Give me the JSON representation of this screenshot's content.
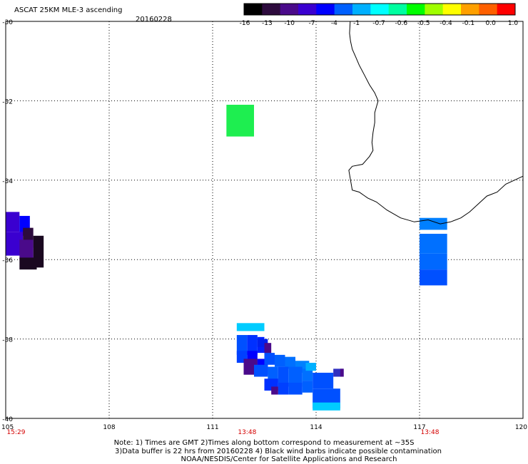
{
  "header": {
    "product": "ASCAT 25KM MLE-3 ascending",
    "date": "20160228"
  },
  "colorbar": {
    "labels": [
      "-16",
      "-13",
      "-10",
      "-7",
      "-4",
      "-1",
      "-0.7",
      "-0.6",
      "-0.5",
      "-0.4",
      "-0.1",
      "0.0",
      "1.0"
    ],
    "colors": [
      "#000000",
      "#2d0b3d",
      "#4a0a8a",
      "#3a00d0",
      "#0000ff",
      "#0060ff",
      "#00b0ff",
      "#00ffff",
      "#00ffa0",
      "#00ff00",
      "#a0ff00",
      "#ffff00",
      "#ffa000",
      "#ff6000",
      "#ff0000"
    ]
  },
  "axes": {
    "lon_labels": [
      "105",
      "108",
      "111",
      "114",
      "117",
      "120"
    ],
    "lat_labels": [
      "-30",
      "-32",
      "-34",
      "-36",
      "-38",
      "-40"
    ],
    "lon_range": [
      105,
      120
    ],
    "lat_range": [
      -30,
      -40
    ]
  },
  "times": [
    {
      "lon": 105.3,
      "label": "15:29"
    },
    {
      "lon": 112.0,
      "label": "13:48"
    },
    {
      "lon": 117.3,
      "label": "13:48"
    }
  ],
  "cells": [
    {
      "lon": 111.4,
      "lat": -32.1,
      "w": 0.8,
      "h": 0.8,
      "color": "#1eee50"
    },
    {
      "lon": 105.0,
      "lat": -34.8,
      "w": 0.4,
      "h": 0.5,
      "color": "#3a00d0"
    },
    {
      "lon": 105.4,
      "lat": -34.9,
      "w": 0.3,
      "h": 0.5,
      "color": "#0000ff"
    },
    {
      "lon": 105.0,
      "lat": -35.3,
      "w": 0.5,
      "h": 0.6,
      "color": "#3a00d0"
    },
    {
      "lon": 105.5,
      "lat": -35.2,
      "w": 0.3,
      "h": 0.5,
      "color": "#2d0b3d"
    },
    {
      "lon": 105.8,
      "lat": -35.4,
      "w": 0.3,
      "h": 0.8,
      "color": "#1a0820"
    },
    {
      "lon": 105.4,
      "lat": -35.5,
      "w": 0.4,
      "h": 0.5,
      "color": "#4a0a8a"
    },
    {
      "lon": 105.4,
      "lat": -35.95,
      "w": 0.5,
      "h": 0.3,
      "color": "#1a0820"
    },
    {
      "lon": 117.0,
      "lat": -34.95,
      "w": 0.8,
      "h": 0.3,
      "color": "#0080ff"
    },
    {
      "lon": 117.0,
      "lat": -35.35,
      "w": 0.8,
      "h": 0.5,
      "color": "#0070ff"
    },
    {
      "lon": 117.0,
      "lat": -35.85,
      "w": 0.8,
      "h": 0.4,
      "color": "#0068ff"
    },
    {
      "lon": 117.0,
      "lat": -36.25,
      "w": 0.8,
      "h": 0.4,
      "color": "#0050ff"
    },
    {
      "lon": 111.7,
      "lat": -37.6,
      "w": 0.8,
      "h": 0.2,
      "color": "#00ccff"
    },
    {
      "lon": 111.7,
      "lat": -37.9,
      "w": 0.3,
      "h": 0.5,
      "color": "#0050ff"
    },
    {
      "lon": 112.0,
      "lat": -37.9,
      "w": 0.3,
      "h": 0.5,
      "color": "#0030ff"
    },
    {
      "lon": 112.3,
      "lat": -37.95,
      "w": 0.2,
      "h": 0.4,
      "color": "#0020ff"
    },
    {
      "lon": 112.3,
      "lat": -38.0,
      "w": 0.3,
      "h": 0.2,
      "color": "#0020ee"
    },
    {
      "lon": 112.5,
      "lat": -38.1,
      "w": 0.2,
      "h": 0.4,
      "color": "#4a0a8a"
    },
    {
      "lon": 112.0,
      "lat": -38.3,
      "w": 0.3,
      "h": 0.4,
      "color": "#0000ff"
    },
    {
      "lon": 111.7,
      "lat": -38.3,
      "w": 0.3,
      "h": 0.3,
      "color": "#0040ff"
    },
    {
      "lon": 111.9,
      "lat": -38.5,
      "w": 0.4,
      "h": 0.4,
      "color": "#4a0a8a"
    },
    {
      "lon": 112.3,
      "lat": -38.5,
      "w": 0.3,
      "h": 0.4,
      "color": "#0000ff"
    },
    {
      "lon": 112.5,
      "lat": -38.35,
      "w": 0.3,
      "h": 0.3,
      "color": "#0050ff"
    },
    {
      "lon": 112.8,
      "lat": -38.4,
      "w": 0.3,
      "h": 0.3,
      "color": "#0060ff"
    },
    {
      "lon": 113.1,
      "lat": -38.45,
      "w": 0.3,
      "h": 0.3,
      "color": "#0070ff"
    },
    {
      "lon": 113.4,
      "lat": -38.55,
      "w": 0.4,
      "h": 0.3,
      "color": "#0080ff"
    },
    {
      "lon": 112.6,
      "lat": -38.7,
      "w": 0.3,
      "h": 0.4,
      "color": "#0060ff"
    },
    {
      "lon": 112.9,
      "lat": -38.7,
      "w": 0.3,
      "h": 0.5,
      "color": "#0050ff"
    },
    {
      "lon": 113.2,
      "lat": -38.7,
      "w": 0.4,
      "h": 0.5,
      "color": "#0060ff"
    },
    {
      "lon": 113.6,
      "lat": -38.75,
      "w": 0.3,
      "h": 0.3,
      "color": "#0070ff"
    },
    {
      "lon": 113.7,
      "lat": -38.6,
      "w": 0.3,
      "h": 0.2,
      "color": "#00b0ff"
    },
    {
      "lon": 112.2,
      "lat": -38.65,
      "w": 0.4,
      "h": 0.3,
      "color": "#0050ff"
    },
    {
      "lon": 112.5,
      "lat": -39.0,
      "w": 0.4,
      "h": 0.3,
      "color": "#0030ff"
    },
    {
      "lon": 112.9,
      "lat": -39.1,
      "w": 0.3,
      "h": 0.3,
      "color": "#0040ff"
    },
    {
      "lon": 113.2,
      "lat": -39.1,
      "w": 0.4,
      "h": 0.3,
      "color": "#0050ff"
    },
    {
      "lon": 113.6,
      "lat": -39.05,
      "w": 0.3,
      "h": 0.3,
      "color": "#0060ff"
    },
    {
      "lon": 113.9,
      "lat": -38.85,
      "w": 0.6,
      "h": 0.4,
      "color": "#0050ff"
    },
    {
      "lon": 113.9,
      "lat": -39.25,
      "w": 0.8,
      "h": 0.5,
      "color": "#0050ff"
    },
    {
      "lon": 114.5,
      "lat": -38.75,
      "w": 0.3,
      "h": 0.2,
      "color": "#3030c0"
    },
    {
      "lon": 114.7,
      "lat": -38.75,
      "w": 0.1,
      "h": 0.2,
      "color": "#4a0a8a"
    },
    {
      "lon": 112.7,
      "lat": -39.2,
      "w": 0.2,
      "h": 0.2,
      "color": "#4a0a8a"
    },
    {
      "lon": 113.9,
      "lat": -39.6,
      "w": 0.8,
      "h": 0.2,
      "color": "#00ccff"
    }
  ],
  "coast": [
    [
      114.99,
      -30.0
    ],
    [
      114.97,
      -30.3
    ],
    [
      115.0,
      -30.5
    ],
    [
      115.05,
      -30.7
    ],
    [
      115.15,
      -30.9
    ],
    [
      115.25,
      -31.1
    ],
    [
      115.4,
      -31.35
    ],
    [
      115.55,
      -31.6
    ],
    [
      115.7,
      -31.8
    ],
    [
      115.8,
      -32.0
    ],
    [
      115.75,
      -32.15
    ],
    [
      115.7,
      -32.3
    ],
    [
      115.7,
      -32.55
    ],
    [
      115.65,
      -32.8
    ],
    [
      115.62,
      -33.05
    ],
    [
      115.65,
      -33.25
    ],
    [
      115.55,
      -33.4
    ],
    [
      115.35,
      -33.6
    ],
    [
      115.05,
      -33.65
    ],
    [
      114.95,
      -33.75
    ],
    [
      115.0,
      -34.0
    ],
    [
      115.05,
      -34.25
    ],
    [
      115.25,
      -34.3
    ],
    [
      115.5,
      -34.45
    ],
    [
      115.75,
      -34.55
    ],
    [
      116.05,
      -34.75
    ],
    [
      116.45,
      -34.95
    ],
    [
      116.85,
      -35.05
    ],
    [
      117.25,
      -35.0
    ],
    [
      117.6,
      -35.1
    ],
    [
      117.9,
      -35.05
    ],
    [
      118.2,
      -34.95
    ],
    [
      118.45,
      -34.8
    ],
    [
      118.7,
      -34.6
    ],
    [
      118.95,
      -34.4
    ],
    [
      119.25,
      -34.3
    ],
    [
      119.5,
      -34.1
    ],
    [
      119.75,
      -34.0
    ],
    [
      120.0,
      -33.9
    ]
  ],
  "footer": {
    "line1": "Note: 1) Times are GMT 2)Times along bottom correspond to measurement at ~35S",
    "line2": "3)Data buffer is 22 hrs from 20160228 4) Black wind barbs indicate possible contamination",
    "line3": "NOAA/NESDIS/Center for Satellite Applications and Research"
  }
}
